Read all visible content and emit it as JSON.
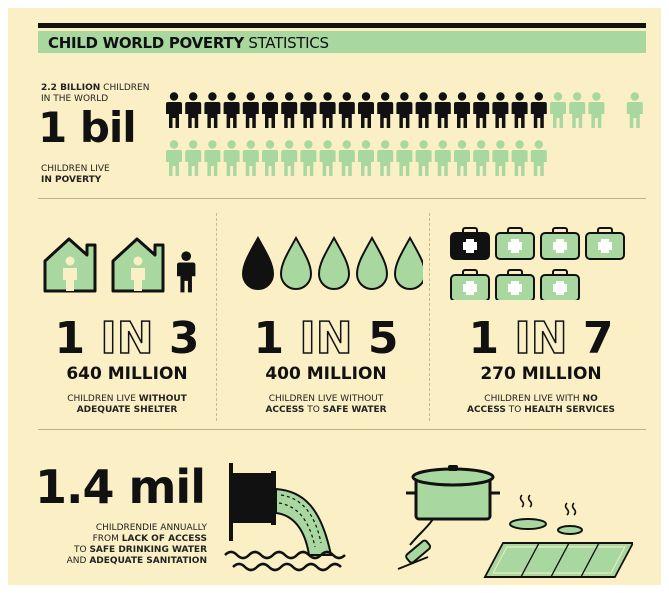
{
  "title": {
    "bold": "CHILD WORLD POVERTY",
    "light": "STATISTICS"
  },
  "colors": {
    "background": "#fbefc6",
    "accent": "#a8d8a0",
    "ink": "#111111"
  },
  "section1": {
    "world_bold": "2.2 BILLION",
    "world_rest": " CHILDREN",
    "world_line2": "IN THE WORLD",
    "big": "1 bil",
    "poverty_line1": "CHILDREN LIVE",
    "poverty_line2": "IN POVERTY",
    "icon_rows": [
      {
        "dark": 20,
        "green": 3,
        "extra_green": 1
      },
      {
        "dark": 0,
        "green": 20
      }
    ]
  },
  "stats": [
    {
      "icon": "house-icon",
      "ratio_left": "1",
      "ratio_in": "IN",
      "ratio_right": "3",
      "million": "640 MILLION",
      "line1_plain": "CHILDREN LIVE ",
      "line1_bold": "WITHOUT",
      "line2_bold": "ADEQUATE SHELTER",
      "line2_plain": "",
      "line2_bold2": ""
    },
    {
      "icon": "water-drop-icon",
      "ratio_left": "1",
      "ratio_in": "IN",
      "ratio_right": "5",
      "million": "400 MILLION",
      "line1_plain": "CHILDREN LIVE WITHOUT",
      "line1_bold": "",
      "line2_bold": "ACCESS",
      "line2_plain": " TO ",
      "line2_bold2": "SAFE WATER"
    },
    {
      "icon": "medical-kit-icon",
      "ratio_left": "1",
      "ratio_in": "IN",
      "ratio_right": "7",
      "million": "270 MILLION",
      "line1_plain": "CHILDREN LIVE WITH ",
      "line1_bold": "NO",
      "line2_bold": "ACCESS",
      "line2_plain": " TO ",
      "line2_bold2": "HEALTH SERVICES"
    }
  ],
  "section3": {
    "big": "1.4 mil",
    "l1": "CHILDRENDIE ANNUALLY",
    "l2_plain": "FROM ",
    "l2_bold": "LACK OF ACCESS",
    "l3_plain": "TO ",
    "l3_bold": "SAFE DRINKING WATER",
    "l4_plain": "AND ",
    "l4_bold": "ADEQUATE SANITATION",
    "icons": [
      "sewage-pipe-icon",
      "cooking-pot-icon",
      "hot-plate-icon",
      "solar-panel-icon"
    ]
  }
}
